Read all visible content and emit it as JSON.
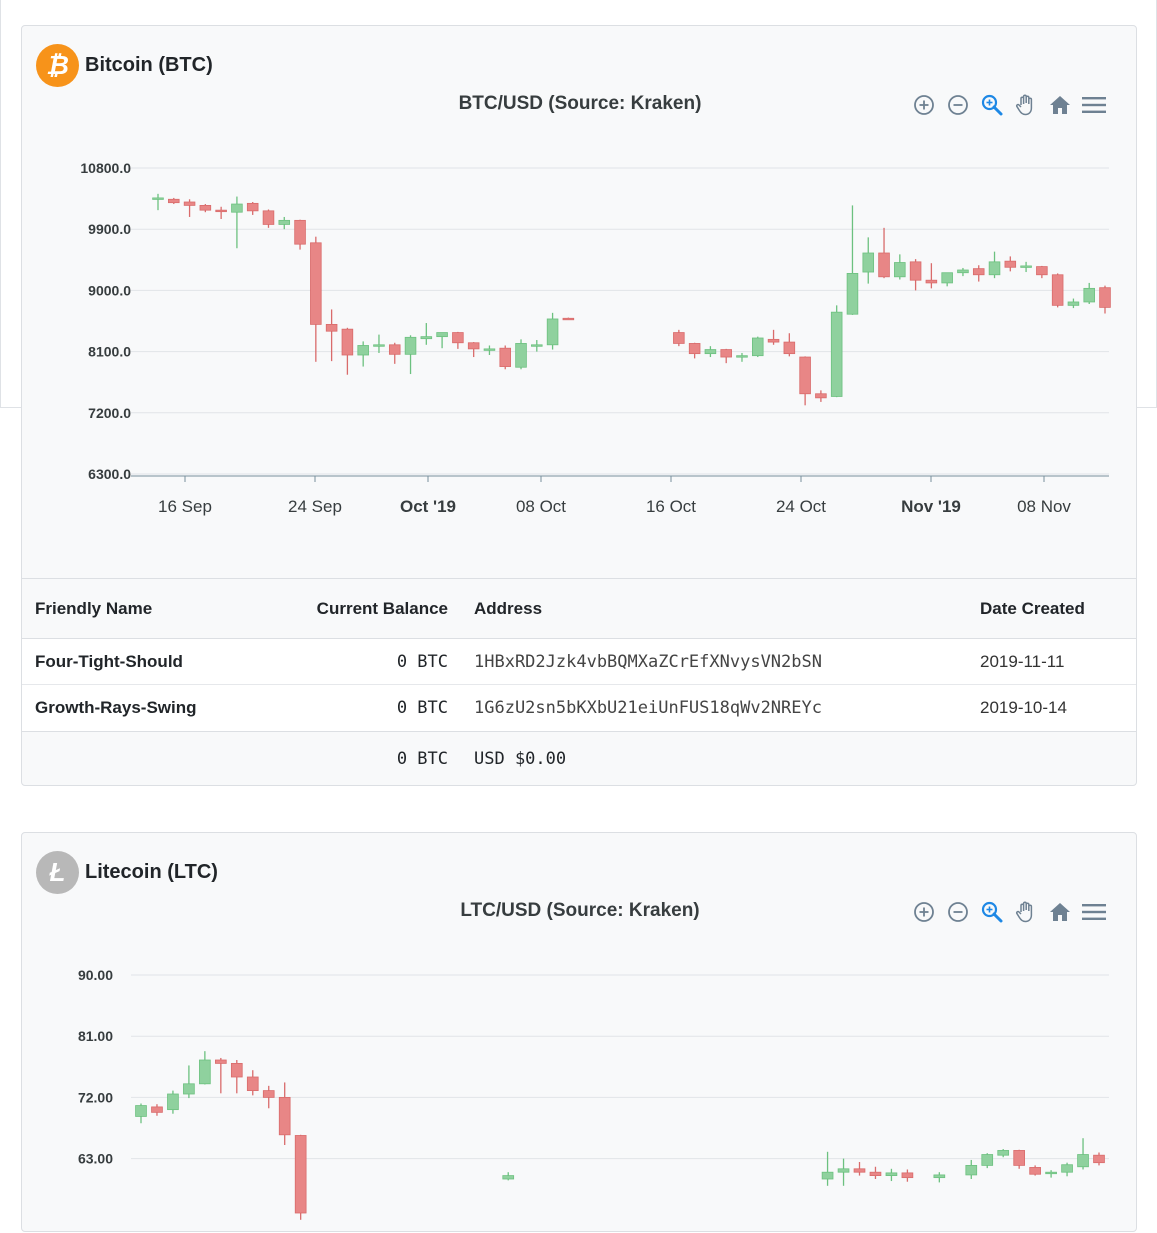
{
  "btc": {
    "name": "Bitcoin (BTC)",
    "logo_symbol": "₿",
    "logo_color": "#f7931a",
    "chart_title": "BTC/USD (Source: Kraken)",
    "table": {
      "headers": [
        "Friendly Name",
        "Current Balance",
        "Address",
        "Date Created"
      ],
      "rows": [
        {
          "name": "Four-Tight-Should",
          "balance": "0 BTC",
          "address": "1HBxRD2Jzk4vbBQMXaZCrEfXNvysVN2bSN",
          "date": "2019-11-11"
        },
        {
          "name": "Growth-Rays-Swing",
          "balance": "0 BTC",
          "address": "1G6zU2sn5bKXbU21eiUnFUS18qWv2NREYc",
          "date": "2019-10-14"
        }
      ],
      "total_balance": "0 BTC",
      "total_usd": "USD $0.00"
    }
  },
  "ltc": {
    "name": "Litecoin (LTC)",
    "logo_symbol": "Ł",
    "logo_color": "#b8b8b8",
    "chart_title": "LTC/USD (Source: Kraken)"
  },
  "toolbar_icons": [
    "zoom-in-icon",
    "zoom-out-icon",
    "zoom-selection-icon",
    "pan-hand-icon",
    "home-reset-icon",
    "menu-icon"
  ],
  "colors": {
    "up": "#8fd19e",
    "down": "#e88686",
    "active_tool": "#1e88e5",
    "tool": "#6e8192"
  },
  "chart_data": [
    {
      "type": "candlestick",
      "title": "BTC/USD (Source: Kraken)",
      "x_ticks": [
        "16 Sep",
        "24 Sep",
        "Oct '19",
        "08 Oct",
        "16 Oct",
        "24 Oct",
        "Nov '19",
        "08 Nov"
      ],
      "y_ticks": [
        "10800.0",
        "9900.0",
        "9000.0",
        "8100.0",
        "7200.0",
        "6300.0"
      ],
      "ylim": [
        6300,
        10800
      ],
      "x_start": "2019-09-14",
      "x_end": "2019-11-13",
      "series": [
        {
          "x": "2019-09-14",
          "o": 10340,
          "h": 10420,
          "l": 10180,
          "c": 10360
        },
        {
          "x": "2019-09-15",
          "o": 10340,
          "h": 10360,
          "l": 10270,
          "c": 10290
        },
        {
          "x": "2019-09-16",
          "o": 10300,
          "h": 10340,
          "l": 10080,
          "c": 10250
        },
        {
          "x": "2019-09-17",
          "o": 10250,
          "h": 10270,
          "l": 10150,
          "c": 10180
        },
        {
          "x": "2019-09-18",
          "o": 10180,
          "h": 10230,
          "l": 10050,
          "c": 10160
        },
        {
          "x": "2019-09-19",
          "o": 10150,
          "h": 10380,
          "l": 9620,
          "c": 10270
        },
        {
          "x": "2019-09-20",
          "o": 10280,
          "h": 10300,
          "l": 10110,
          "c": 10170
        },
        {
          "x": "2019-09-21",
          "o": 10170,
          "h": 10190,
          "l": 9920,
          "c": 9970
        },
        {
          "x": "2019-09-22",
          "o": 9970,
          "h": 10080,
          "l": 9900,
          "c": 10030
        },
        {
          "x": "2019-09-23",
          "o": 10030,
          "h": 10040,
          "l": 9600,
          "c": 9680
        },
        {
          "x": "2019-09-24",
          "o": 9700,
          "h": 9790,
          "l": 7950,
          "c": 8500
        },
        {
          "x": "2019-09-25",
          "o": 8500,
          "h": 8720,
          "l": 7960,
          "c": 8400
        },
        {
          "x": "2019-09-26",
          "o": 8430,
          "h": 8450,
          "l": 7760,
          "c": 8050
        },
        {
          "x": "2019-09-27",
          "o": 8050,
          "h": 8250,
          "l": 7880,
          "c": 8190
        },
        {
          "x": "2019-09-28",
          "o": 8190,
          "h": 8350,
          "l": 8080,
          "c": 8200
        },
        {
          "x": "2019-09-29",
          "o": 8200,
          "h": 8230,
          "l": 7920,
          "c": 8060
        },
        {
          "x": "2019-09-30",
          "o": 8060,
          "h": 8340,
          "l": 7770,
          "c": 8310
        },
        {
          "x": "2019-10-01",
          "o": 8290,
          "h": 8520,
          "l": 8200,
          "c": 8320
        },
        {
          "x": "2019-10-02",
          "o": 8320,
          "h": 8360,
          "l": 8150,
          "c": 8380
        },
        {
          "x": "2019-10-03",
          "o": 8380,
          "h": 8390,
          "l": 8140,
          "c": 8230
        },
        {
          "x": "2019-10-04",
          "o": 8230,
          "h": 8240,
          "l": 8020,
          "c": 8140
        },
        {
          "x": "2019-10-05",
          "o": 8140,
          "h": 8190,
          "l": 8050,
          "c": 8140
        },
        {
          "x": "2019-10-06",
          "o": 8150,
          "h": 8190,
          "l": 7840,
          "c": 7880
        },
        {
          "x": "2019-10-07",
          "o": 7870,
          "h": 8280,
          "l": 7840,
          "c": 8220
        },
        {
          "x": "2019-10-08",
          "o": 8180,
          "h": 8270,
          "l": 8100,
          "c": 8200
        },
        {
          "x": "2019-10-09",
          "o": 8200,
          "h": 8670,
          "l": 8130,
          "c": 8580
        },
        {
          "x": "2019-10-10",
          "o": 8590,
          "h": 8600,
          "l": 8570,
          "c": 8580
        },
        {
          "x": "2019-10-17",
          "o": 8380,
          "h": 8420,
          "l": 8180,
          "c": 8220
        },
        {
          "x": "2019-10-18",
          "o": 8220,
          "h": 8230,
          "l": 8000,
          "c": 8070
        },
        {
          "x": "2019-10-19",
          "o": 8070,
          "h": 8180,
          "l": 8020,
          "c": 8130
        },
        {
          "x": "2019-10-20",
          "o": 8130,
          "h": 8140,
          "l": 7930,
          "c": 8020
        },
        {
          "x": "2019-10-21",
          "o": 8030,
          "h": 8080,
          "l": 7950,
          "c": 8040
        },
        {
          "x": "2019-10-22",
          "o": 8040,
          "h": 8320,
          "l": 8020,
          "c": 8300
        },
        {
          "x": "2019-10-23",
          "o": 8280,
          "h": 8420,
          "l": 8200,
          "c": 8240
        },
        {
          "x": "2019-10-24",
          "o": 8240,
          "h": 8370,
          "l": 8030,
          "c": 8070
        },
        {
          "x": "2019-10-25",
          "o": 8020,
          "h": 8030,
          "l": 7310,
          "c": 7480
        },
        {
          "x": "2019-10-26",
          "o": 7480,
          "h": 7530,
          "l": 7360,
          "c": 7420
        },
        {
          "x": "2019-10-27",
          "o": 7440,
          "h": 8780,
          "l": 7430,
          "c": 8680
        },
        {
          "x": "2019-10-28",
          "o": 8650,
          "h": 10250,
          "l": 8640,
          "c": 9250
        },
        {
          "x": "2019-10-29",
          "o": 9270,
          "h": 9780,
          "l": 9100,
          "c": 9550
        },
        {
          "x": "2019-10-30",
          "o": 9550,
          "h": 9920,
          "l": 9180,
          "c": 9200
        },
        {
          "x": "2019-10-31",
          "o": 9200,
          "h": 9530,
          "l": 9160,
          "c": 9410
        },
        {
          "x": "2019-11-01",
          "o": 9420,
          "h": 9460,
          "l": 9000,
          "c": 9150
        },
        {
          "x": "2019-11-02",
          "o": 9150,
          "h": 9400,
          "l": 9030,
          "c": 9110
        },
        {
          "x": "2019-11-03",
          "o": 9110,
          "h": 9230,
          "l": 9060,
          "c": 9260
        },
        {
          "x": "2019-11-04",
          "o": 9260,
          "h": 9330,
          "l": 9210,
          "c": 9300
        },
        {
          "x": "2019-11-05",
          "o": 9320,
          "h": 9370,
          "l": 9130,
          "c": 9230
        },
        {
          "x": "2019-11-06",
          "o": 9230,
          "h": 9570,
          "l": 9180,
          "c": 9420
        },
        {
          "x": "2019-11-07",
          "o": 9430,
          "h": 9500,
          "l": 9280,
          "c": 9340
        },
        {
          "x": "2019-11-08",
          "o": 9340,
          "h": 9420,
          "l": 9270,
          "c": 9360
        },
        {
          "x": "2019-11-09",
          "o": 9350,
          "h": 9360,
          "l": 9180,
          "c": 9230
        },
        {
          "x": "2019-11-10",
          "o": 9230,
          "h": 9250,
          "l": 8750,
          "c": 8780
        },
        {
          "x": "2019-11-11",
          "o": 8780,
          "h": 8880,
          "l": 8740,
          "c": 8830
        },
        {
          "x": "2019-11-12",
          "o": 8830,
          "h": 9110,
          "l": 8800,
          "c": 9030
        },
        {
          "x": "2019-11-13",
          "o": 9040,
          "h": 9070,
          "l": 8660,
          "c": 8750
        }
      ]
    },
    {
      "type": "candlestick",
      "title": "LTC/USD (Source: Kraken)",
      "y_ticks": [
        "90.00",
        "81.00",
        "72.00",
        "63.00"
      ],
      "ylim": [
        54,
        90
      ],
      "x_start": "2019-09-14",
      "x_end": "2019-11-13",
      "series": [
        {
          "x": "2019-09-14",
          "o": 69.2,
          "h": 71.1,
          "l": 68.2,
          "c": 70.8
        },
        {
          "x": "2019-09-15",
          "o": 70.6,
          "h": 71.0,
          "l": 69.3,
          "c": 69.8
        },
        {
          "x": "2019-09-16",
          "o": 70.2,
          "h": 73.0,
          "l": 69.6,
          "c": 72.5
        },
        {
          "x": "2019-09-17",
          "o": 72.5,
          "h": 76.7,
          "l": 71.9,
          "c": 74.0
        },
        {
          "x": "2019-09-18",
          "o": 74.0,
          "h": 78.8,
          "l": 73.9,
          "c": 77.5
        },
        {
          "x": "2019-09-19",
          "o": 77.5,
          "h": 77.8,
          "l": 72.6,
          "c": 77.0
        },
        {
          "x": "2019-09-20",
          "o": 77.0,
          "h": 77.5,
          "l": 72.6,
          "c": 75.0
        },
        {
          "x": "2019-09-21",
          "o": 75.0,
          "h": 76.0,
          "l": 72.3,
          "c": 73.0
        },
        {
          "x": "2019-09-22",
          "o": 73.0,
          "h": 73.7,
          "l": 70.4,
          "c": 72.0
        },
        {
          "x": "2019-09-23",
          "o": 72.0,
          "h": 74.2,
          "l": 65.0,
          "c": 66.5
        },
        {
          "x": "2019-09-24",
          "o": 66.4,
          "h": 66.5,
          "l": 54.0,
          "c": 55.0
        },
        {
          "x": "2019-10-07",
          "o": 60.0,
          "h": 61.0,
          "l": 59.8,
          "c": 60.5
        },
        {
          "x": "2019-10-27",
          "o": 60.0,
          "h": 64.0,
          "l": 59.0,
          "c": 61.0
        },
        {
          "x": "2019-10-28",
          "o": 61.0,
          "h": 63.0,
          "l": 59.0,
          "c": 61.5
        },
        {
          "x": "2019-10-29",
          "o": 61.5,
          "h": 62.5,
          "l": 60.5,
          "c": 61.0
        },
        {
          "x": "2019-10-30",
          "o": 61.0,
          "h": 61.8,
          "l": 60.0,
          "c": 60.5
        },
        {
          "x": "2019-10-31",
          "o": 60.5,
          "h": 61.5,
          "l": 59.7,
          "c": 60.9
        },
        {
          "x": "2019-11-01",
          "o": 60.9,
          "h": 61.4,
          "l": 59.6,
          "c": 60.2
        },
        {
          "x": "2019-11-03",
          "o": 60.2,
          "h": 61.0,
          "l": 59.5,
          "c": 60.6
        },
        {
          "x": "2019-11-05",
          "o": 60.6,
          "h": 62.8,
          "l": 60.0,
          "c": 62.0
        },
        {
          "x": "2019-11-06",
          "o": 62.0,
          "h": 63.8,
          "l": 61.6,
          "c": 63.6
        },
        {
          "x": "2019-11-07",
          "o": 63.5,
          "h": 64.4,
          "l": 63.2,
          "c": 64.2
        },
        {
          "x": "2019-11-08",
          "o": 64.2,
          "h": 64.3,
          "l": 61.5,
          "c": 62.0
        },
        {
          "x": "2019-11-09",
          "o": 61.7,
          "h": 62.0,
          "l": 60.5,
          "c": 60.7
        },
        {
          "x": "2019-11-10",
          "o": 60.8,
          "h": 61.3,
          "l": 60.2,
          "c": 61.0
        },
        {
          "x": "2019-11-11",
          "o": 61.0,
          "h": 62.4,
          "l": 60.4,
          "c": 62.1
        },
        {
          "x": "2019-11-12",
          "o": 61.8,
          "h": 66.0,
          "l": 61.4,
          "c": 63.6
        },
        {
          "x": "2019-11-13",
          "o": 63.5,
          "h": 63.9,
          "l": 62.0,
          "c": 62.4
        }
      ]
    }
  ]
}
